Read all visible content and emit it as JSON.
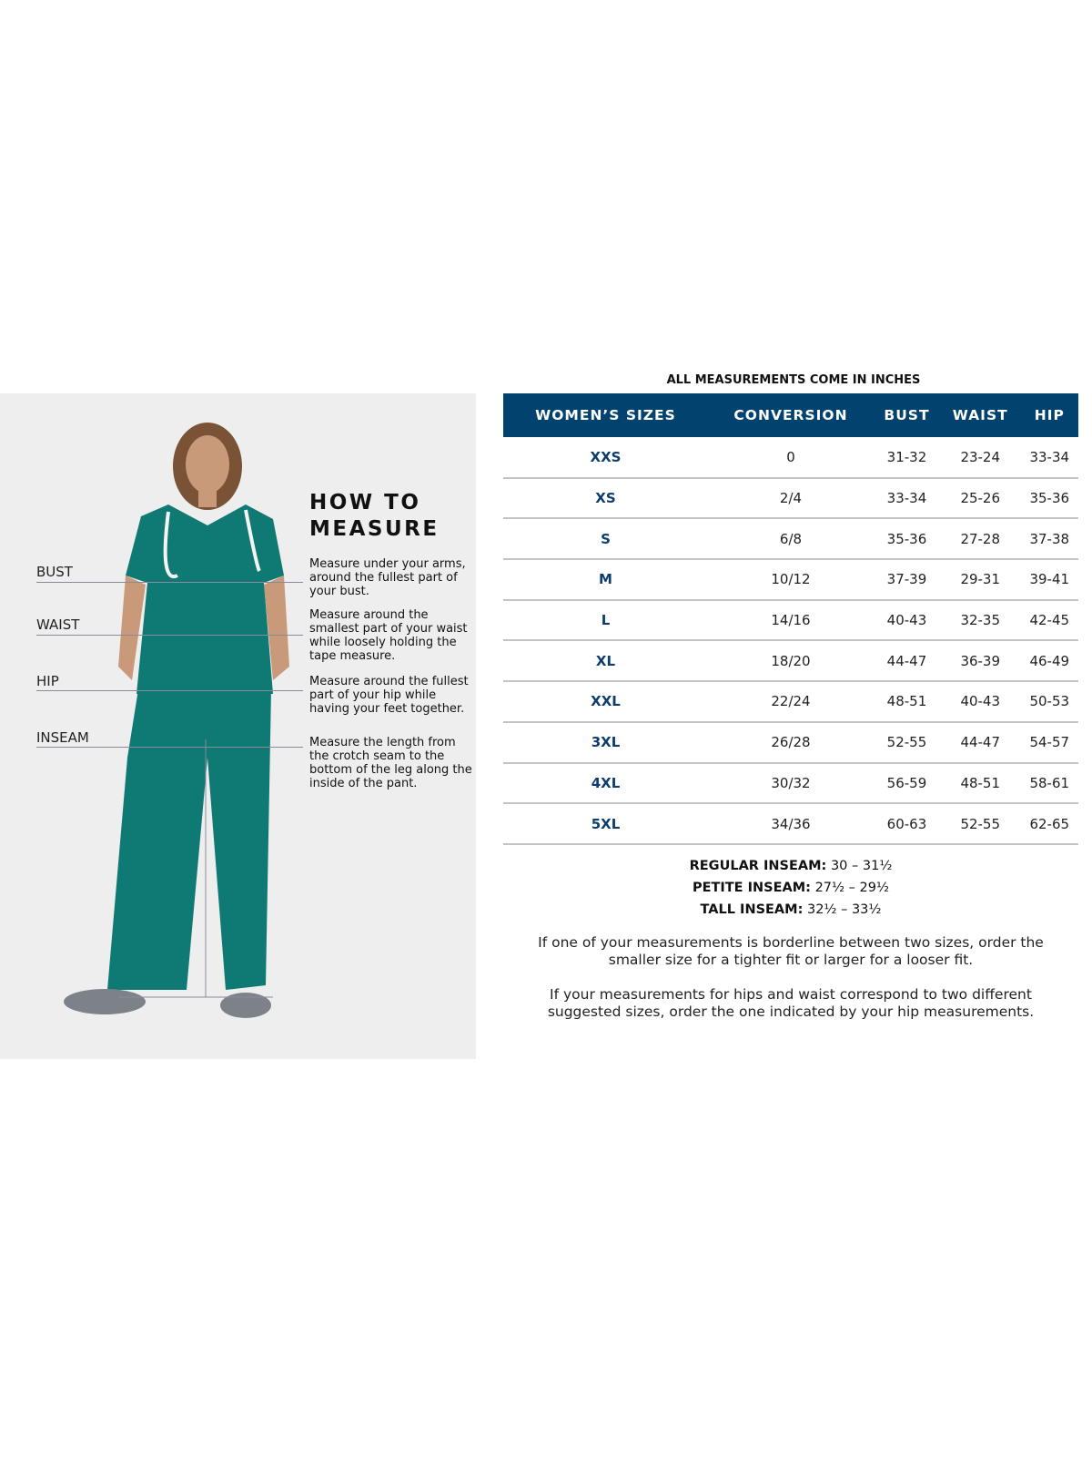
{
  "note": "ALL MEASUREMENTS COME IN INCHES",
  "how_to": {
    "title_line1": "HOW TO",
    "title_line2": "MEASURE",
    "items": [
      {
        "label": "BUST",
        "desc": "Measure under your arms, around the fullest part of your bust."
      },
      {
        "label": "WAIST",
        "desc": "Measure around the smallest part of your waist while loosely holding the tape measure."
      },
      {
        "label": "HIP",
        "desc": "Measure around the fullest part of your hip while having your feet together."
      },
      {
        "label": "INSEAM",
        "desc": "Measure the length from the crotch seam to the bottom of the leg along the inside of the pant."
      }
    ]
  },
  "colors": {
    "header": "#02426e",
    "size_text": "#0d3d6e",
    "panel": "#eeeeee",
    "scrubs": "#0f7a74"
  },
  "table": {
    "headers": [
      "WOMEN’S SIZES",
      "CONVERSION",
      "BUST",
      "WAIST",
      "HIP"
    ],
    "rows": [
      [
        "XXS",
        "0",
        "31-32",
        "23-24",
        "33-34"
      ],
      [
        "XS",
        "2/4",
        "33-34",
        "25-26",
        "35-36"
      ],
      [
        "S",
        "6/8",
        "35-36",
        "27-28",
        "37-38"
      ],
      [
        "M",
        "10/12",
        "37-39",
        "29-31",
        "39-41"
      ],
      [
        "L",
        "14/16",
        "40-43",
        "32-35",
        "42-45"
      ],
      [
        "XL",
        "18/20",
        "44-47",
        "36-39",
        "46-49"
      ],
      [
        "XXL",
        "22/24",
        "48-51",
        "40-43",
        "50-53"
      ],
      [
        "3XL",
        "26/28",
        "52-55",
        "44-47",
        "54-57"
      ],
      [
        "4XL",
        "30/32",
        "56-59",
        "48-51",
        "58-61"
      ],
      [
        "5XL",
        "34/36",
        "60-63",
        "52-55",
        "62-65"
      ]
    ]
  },
  "inseams": [
    {
      "label": "REGULAR INSEAM:",
      "value": "30  – 31½"
    },
    {
      "label": "PETITE INSEAM:",
      "value": "27½ – 29½"
    },
    {
      "label": "TALL INSEAM:",
      "value": "32½ – 33½"
    }
  ],
  "paragraphs": [
    "If one of your measurements is borderline between two sizes, order the smaller size for a tighter fit or larger for a looser fit.",
    "If your measurements for hips and waist correspond to two different suggested sizes, order the one indicated by your hip measurements."
  ]
}
